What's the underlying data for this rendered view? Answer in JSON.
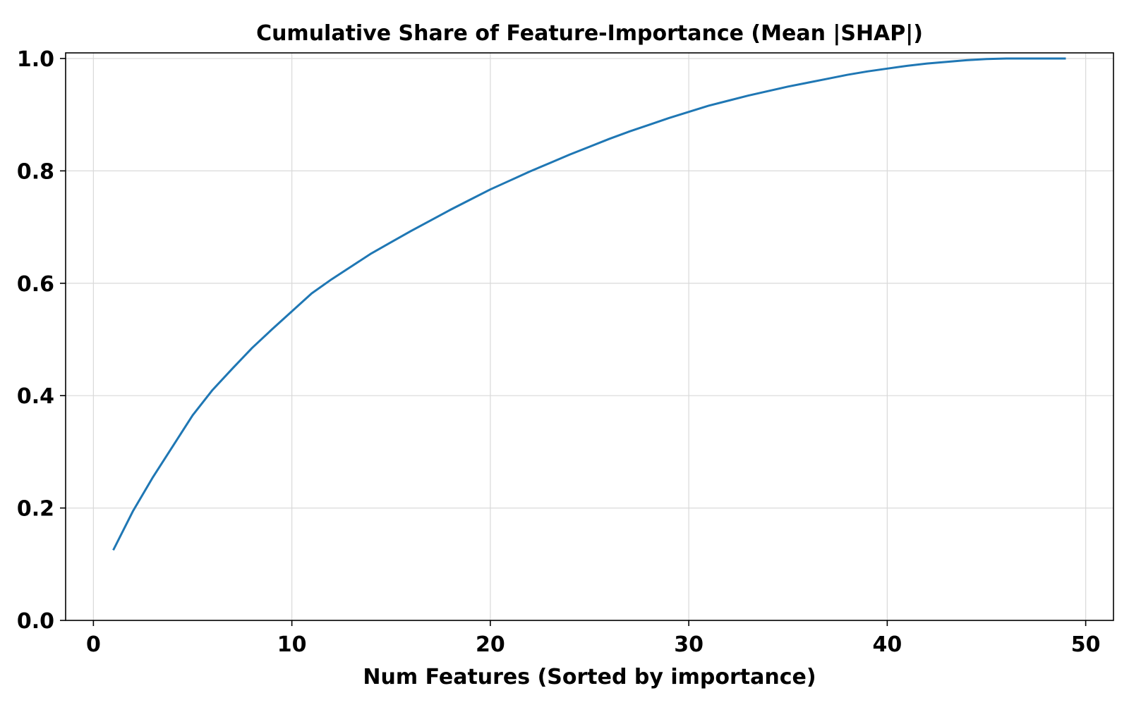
{
  "chart_data": {
    "type": "line",
    "title": "Cumulative Share of Feature-Importance (Mean |SHAP|)",
    "xlabel": "Num Features (Sorted by importance)",
    "ylabel": "",
    "xlim": [
      -1.4,
      51.4
    ],
    "ylim": [
      0.0,
      1.01
    ],
    "xticks": [
      0,
      10,
      20,
      30,
      40,
      50
    ],
    "xtick_labels": [
      "0",
      "10",
      "20",
      "30",
      "40",
      "50"
    ],
    "yticks": [
      0.0,
      0.2,
      0.4,
      0.6,
      0.8,
      1.0
    ],
    "ytick_labels": [
      "0.0",
      "0.2",
      "0.4",
      "0.6",
      "0.8",
      "1.0"
    ],
    "grid": true,
    "colors": {
      "line": "#1f77b4",
      "grid": "#d9d9d9",
      "axes": "#000000"
    },
    "series": [
      {
        "x": [
          1,
          2,
          3,
          4,
          5,
          6,
          7,
          8,
          9,
          10,
          11,
          12,
          13,
          14,
          15,
          16,
          17,
          18,
          19,
          20,
          21,
          22,
          23,
          24,
          25,
          26,
          27,
          28,
          29,
          30,
          31,
          32,
          33,
          34,
          35,
          36,
          37,
          38,
          39,
          40,
          41,
          42,
          43,
          44,
          45,
          46,
          47,
          48,
          49
        ],
        "values": [
          0.125,
          0.195,
          0.255,
          0.31,
          0.365,
          0.41,
          0.448,
          0.485,
          0.518,
          0.55,
          0.582,
          0.607,
          0.63,
          0.653,
          0.673,
          0.693,
          0.712,
          0.731,
          0.749,
          0.767,
          0.783,
          0.799,
          0.814,
          0.829,
          0.843,
          0.857,
          0.87,
          0.882,
          0.894,
          0.905,
          0.916,
          0.925,
          0.934,
          0.942,
          0.95,
          0.957,
          0.964,
          0.971,
          0.977,
          0.982,
          0.987,
          0.991,
          0.994,
          0.997,
          0.999,
          1.0,
          1.0,
          1.0,
          1.0
        ]
      }
    ]
  }
}
